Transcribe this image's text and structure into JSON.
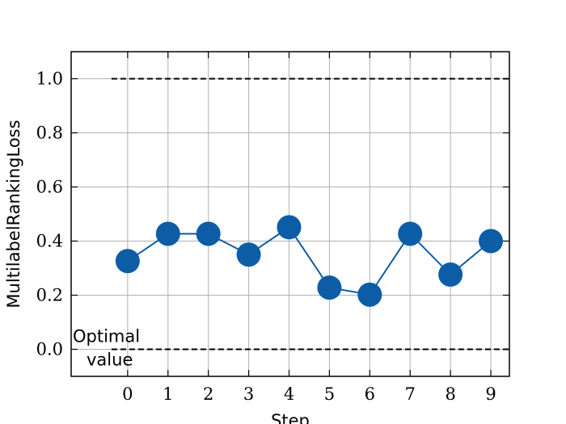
{
  "chart_data": {
    "type": "line",
    "x_label": "Step",
    "y_label": "MultilabelRankingLoss",
    "x": [
      0,
      1,
      2,
      3,
      4,
      5,
      6,
      7,
      8,
      9
    ],
    "series": [
      {
        "color": "#0c5da5",
        "values": [
          0.326,
          0.427,
          0.427,
          0.35,
          0.451,
          0.228,
          0.202,
          0.427,
          0.276,
          0.4
        ]
      }
    ],
    "xlim": [
      -1.4,
      9.46
    ],
    "ylim": [
      -0.1,
      1.1
    ],
    "xticks": [
      0,
      1,
      2,
      3,
      4,
      5,
      6,
      7,
      8,
      9
    ],
    "yticks": [
      {
        "value": 0,
        "label": "0.0"
      },
      {
        "value": 0.2,
        "label": "0.2"
      },
      {
        "value": 0.4,
        "label": "0.4"
      },
      {
        "value": 0.6,
        "label": "0.6"
      },
      {
        "value": 0.8,
        "label": "0.8"
      },
      {
        "value": 1,
        "label": "1.0"
      }
    ],
    "reference_lines": {
      "values": [
        1,
        0
      ],
      "xstart": -0.4,
      "color": "#000000"
    },
    "annotation_lines": [
      "Optimal",
      "value"
    ],
    "grid": true
  }
}
